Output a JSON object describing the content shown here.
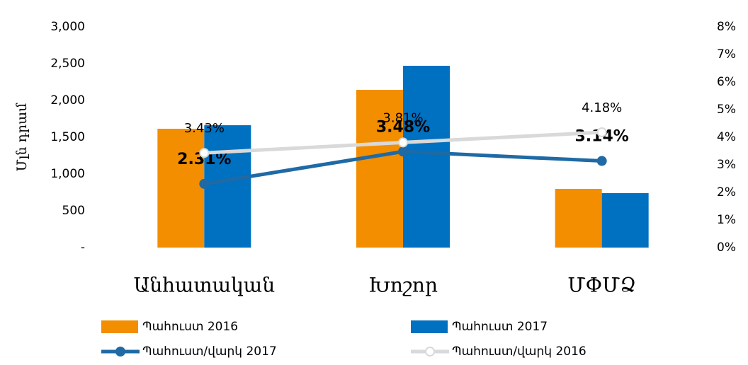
{
  "chart_data": {
    "type": "combo",
    "ylabel": "Մլն դրամ",
    "categories": [
      "Անհատական",
      "Խոշոր",
      "ՄՓՄՁ"
    ],
    "series": [
      {
        "name": "Պահուստ 2016",
        "type": "bar",
        "color": "#f28e00",
        "values": [
          1615,
          2144,
          798
        ]
      },
      {
        "name": "Պահուստ 2017",
        "type": "bar",
        "color": "#0070c0",
        "values": [
          1663,
          2471,
          740
        ]
      },
      {
        "name": "Պահուստ/վարկ 2017",
        "type": "line",
        "axis": "y2",
        "color": "#1f6aa5",
        "marker_fill": "#1f6aa5",
        "label_color": "#000000",
        "values": [
          2.31,
          3.48,
          3.14
        ],
        "value_labels": [
          "2.31%",
          "3.48%",
          "3.14%"
        ]
      },
      {
        "name": "Պահուստ/վարկ 2016",
        "type": "line",
        "axis": "y2",
        "color": "#d9d9d9",
        "marker_fill": "#ffffff",
        "label_color": "#7f7f7f",
        "values": [
          3.43,
          3.81,
          4.18
        ],
        "value_labels": [
          "3.43%",
          "3.81%",
          "4.18%"
        ]
      }
    ],
    "ylim": [
      0,
      3000
    ],
    "yticks": [
      {
        "value": 0,
        "label": "-"
      },
      500,
      {
        "value": 1000,
        "label": "1,000"
      },
      {
        "value": 1500,
        "label": "1,500"
      },
      {
        "value": 2000,
        "label": "2,000"
      },
      {
        "value": 2500,
        "label": "2,500"
      },
      {
        "value": 3000,
        "label": "3,000"
      }
    ],
    "y2lim": [
      0,
      8
    ],
    "y2ticks": [
      {
        "value": 0,
        "label": "0%"
      },
      {
        "value": 1,
        "label": "1%"
      },
      {
        "value": 2,
        "label": "2%"
      },
      {
        "value": 3,
        "label": "3%"
      },
      {
        "value": 4,
        "label": "4%"
      },
      {
        "value": 5,
        "label": "5%"
      },
      {
        "value": 6,
        "label": "6%"
      },
      {
        "value": 7,
        "label": "7%"
      },
      {
        "value": 8,
        "label": "8%"
      }
    ],
    "grid": false,
    "legend": "bottom"
  }
}
